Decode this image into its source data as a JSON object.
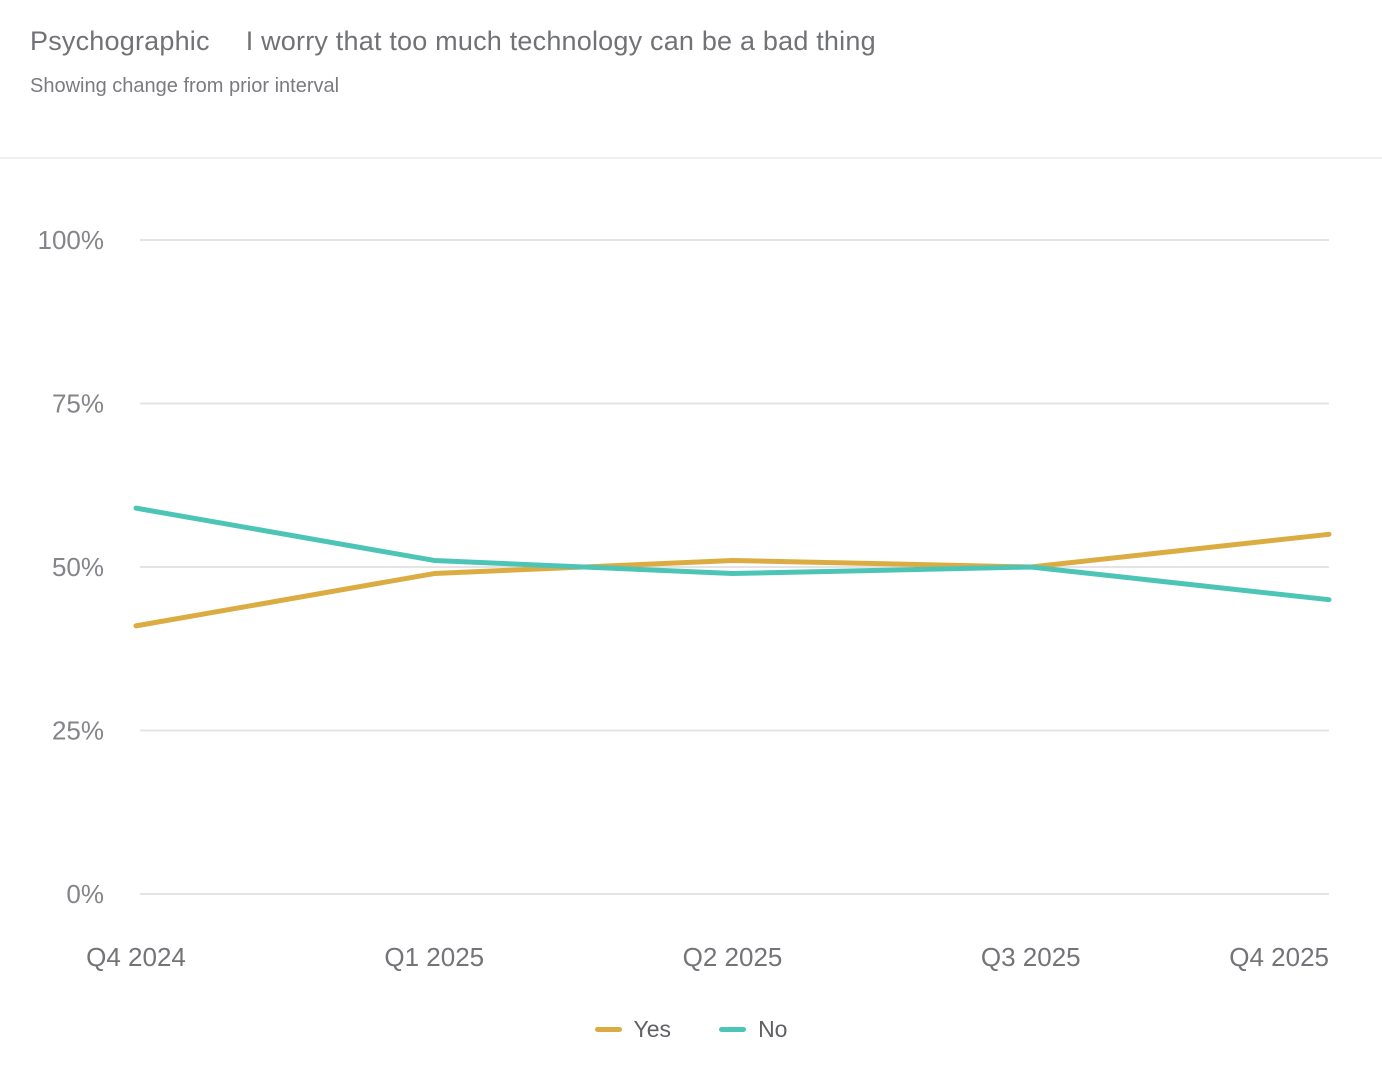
{
  "header": {
    "category_label": "Psychographic",
    "title": "I worry that too much technology can be a bad thing",
    "subtitle": "Showing change from prior interval"
  },
  "chart_data": {
    "type": "line",
    "categories": [
      "Q4 2024",
      "Q1 2025",
      "Q2 2025",
      "Q3 2025",
      "Q4 2025"
    ],
    "series": [
      {
        "name": "Yes",
        "color": "#dbac42",
        "values": [
          41,
          49,
          51,
          50,
          55
        ]
      },
      {
        "name": "No",
        "color": "#4dc5b6",
        "values": [
          59,
          51,
          49,
          50,
          45
        ]
      }
    ],
    "y_ticks": [
      0,
      25,
      50,
      75,
      100
    ],
    "y_tick_labels": [
      "0%",
      "25%",
      "50%",
      "75%",
      "100%"
    ],
    "ylim": [
      0,
      100
    ],
    "grid": true,
    "legend_position": "bottom",
    "title": "Psychographic — I worry that too much technology can be a bad thing",
    "xlabel": "",
    "ylabel": ""
  },
  "colors": {
    "gridline": "#e4e4e7",
    "y_axis_text": "#84858a",
    "x_axis_text": "#737478",
    "divider": "#efeff1"
  }
}
